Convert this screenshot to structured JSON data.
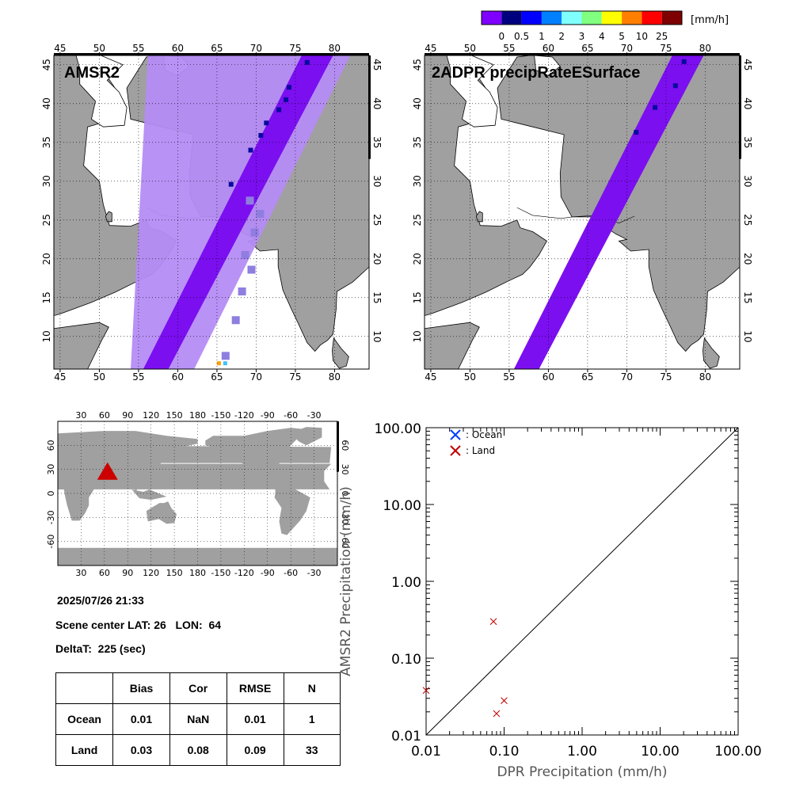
{
  "colorbar": {
    "unit": "[mm/h]",
    "labels": [
      "0",
      "0.5",
      "1",
      "2",
      "3",
      "4",
      "5",
      "10",
      "25"
    ],
    "colors": [
      "#7f00ff",
      "#00007f",
      "#0000ff",
      "#0080ff",
      "#80ffff",
      "#80ff80",
      "#ffff00",
      "#ff8000",
      "#ff0000",
      "#7f0000"
    ]
  },
  "colors": {
    "land": "#a0a0a0",
    "ocean": "#ffffff",
    "swath": "#b58cf5",
    "rain": "#7b0ff0",
    "heavy_rain": "#0a0aa0",
    "ocean_marker": "#0040ff",
    "land_marker": "#c00000",
    "scene_marker": "#cc0000"
  },
  "maps": [
    {
      "title": "AMSR2",
      "lon_ticks": [
        "45",
        "50",
        "55",
        "60",
        "65",
        "70",
        "75",
        "80"
      ],
      "lat_ticks": [
        "10",
        "15",
        "20",
        "25",
        "30",
        "35",
        "40",
        "45"
      ]
    },
    {
      "title": "2ADPR precipRateESurface",
      "lon_ticks": [
        "45",
        "50",
        "55",
        "60",
        "65",
        "70",
        "75",
        "80"
      ],
      "lat_ticks": [
        "10",
        "15",
        "20",
        "25",
        "30",
        "35",
        "40",
        "45"
      ]
    }
  ],
  "globe": {
    "lon_ticks": [
      "30",
      "60",
      "90",
      "120",
      "150",
      "180",
      "-150",
      "-120",
      "-90",
      "-60",
      "-30"
    ],
    "lat_ticks": [
      "60",
      "30",
      "0",
      "-30",
      "-60"
    ],
    "marker_icon": "red-triangle-icon"
  },
  "info": {
    "datetime": "2025/07/26 21:33",
    "scene_center": "Scene center LAT: 26   LON:  64",
    "delta_t": "DeltaT:  225 (sec)"
  },
  "stats": {
    "headers": [
      "",
      "Bias",
      "Cor",
      "RMSE",
      "N"
    ],
    "rows": [
      [
        "Ocean",
        "0.01",
        "NaN",
        "0.01",
        "1"
      ],
      [
        "Land",
        "0.03",
        "0.08",
        "0.09",
        "33"
      ]
    ]
  },
  "chart_data": {
    "type": "scatter",
    "title": "",
    "xlabel": "DPR Precipitation (mm/h)",
    "ylabel": "AMSR2 Precipitation (mm/h)",
    "x_scale": "log",
    "y_scale": "log",
    "xlim": [
      0.01,
      100
    ],
    "ylim": [
      0.01,
      100
    ],
    "x_ticks": [
      "0.01",
      "0.10",
      "1.00",
      "10.00",
      "100.00"
    ],
    "y_ticks": [
      "0.01",
      "0.10",
      "1.00",
      "10.00",
      "100.00"
    ],
    "legend_position": "top-left",
    "reference_line": "1:1",
    "series": [
      {
        "name": ": Ocean",
        "color": "#0040ff",
        "points": []
      },
      {
        "name": ": Land",
        "color": "#c00000",
        "points": [
          [
            0.01,
            0.038
          ],
          [
            0.073,
            0.3
          ],
          [
            0.08,
            0.019
          ],
          [
            0.1,
            0.028
          ]
        ]
      }
    ]
  }
}
